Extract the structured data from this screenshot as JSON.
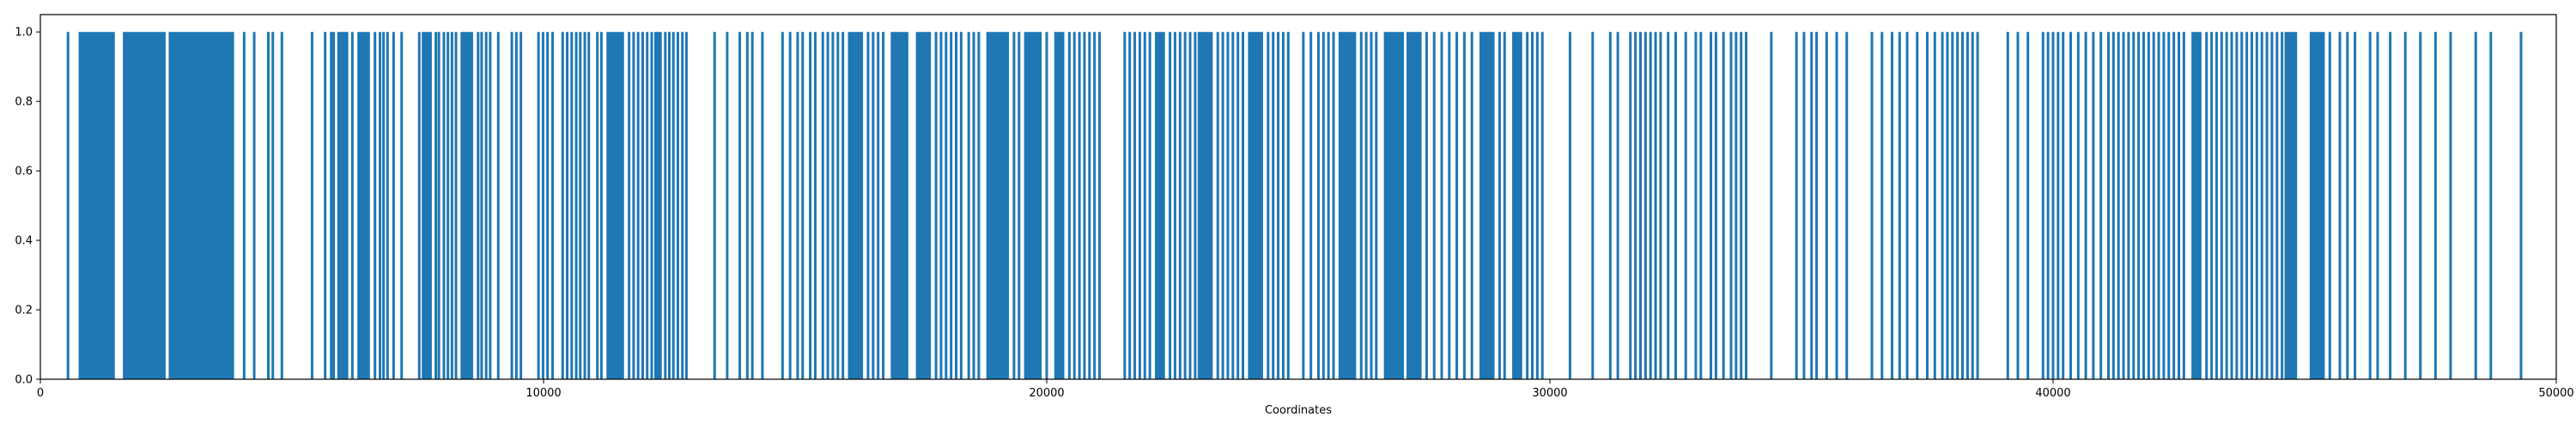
{
  "chart_data": {
    "type": "bar",
    "title": "",
    "xlabel": "Coordinates",
    "ylabel": "",
    "xlim": [
      0,
      50000
    ],
    "ylim": [
      0,
      1.05
    ],
    "grid": false,
    "bar_color": "#1f77b4",
    "bar_value": 1.0,
    "x_ticks": [
      {
        "value": 0,
        "label": "0"
      },
      {
        "value": 10000,
        "label": "10000"
      },
      {
        "value": 20000,
        "label": "20000"
      },
      {
        "value": 30000,
        "label": "30000"
      },
      {
        "value": 40000,
        "label": "40000"
      },
      {
        "value": 50000,
        "label": "50000"
      }
    ],
    "y_ticks": [
      {
        "value": 0.0,
        "label": "0.0"
      },
      {
        "value": 0.2,
        "label": "0.2"
      },
      {
        "value": 0.4,
        "label": "0.4"
      },
      {
        "value": 0.6,
        "label": "0.6"
      },
      {
        "value": 0.8,
        "label": "0.8"
      },
      {
        "value": 1.0,
        "label": "1.0"
      }
    ],
    "filled_ranges": [
      [
        760,
        1480
      ],
      [
        1640,
        2490
      ],
      [
        2550,
        3850
      ],
      [
        5900,
        6120
      ],
      [
        6300,
        6550
      ],
      [
        7580,
        7780
      ],
      [
        8350,
        8600
      ],
      [
        11250,
        11600
      ],
      [
        12200,
        12350
      ],
      [
        16050,
        16350
      ],
      [
        16900,
        17250
      ],
      [
        17400,
        17700
      ],
      [
        18800,
        19250
      ],
      [
        19550,
        19900
      ],
      [
        20150,
        20350
      ],
      [
        22150,
        22350
      ],
      [
        23000,
        23300
      ],
      [
        24000,
        24300
      ],
      [
        25800,
        26150
      ],
      [
        26700,
        27100
      ],
      [
        27150,
        27450
      ],
      [
        28600,
        28900
      ],
      [
        29250,
        29450
      ],
      [
        42750,
        42950
      ],
      [
        44600,
        44850
      ],
      [
        45100,
        45400
      ]
    ],
    "bar_positions": [
      550,
      4050,
      4250,
      4530,
      4620,
      4800,
      5400,
      5660,
      5780,
      5830,
      6200,
      6650,
      6750,
      6820,
      6900,
      7020,
      7180,
      7530,
      7860,
      7920,
      8020,
      8100,
      8180,
      8260,
      8700,
      8770,
      8860,
      8940,
      9100,
      9370,
      9460,
      9550,
      9900,
      9990,
      10080,
      10180,
      10380,
      10470,
      10560,
      10650,
      10730,
      10820,
      10900,
      11070,
      11150,
      11700,
      11790,
      11880,
      11970,
      12060,
      12150,
      12420,
      12500,
      12580,
      12670,
      12760,
      12840,
      13400,
      13650,
      13900,
      14050,
      14150,
      14350,
      14750,
      14900,
      15050,
      15150,
      15300,
      15400,
      15550,
      15650,
      15750,
      15850,
      15950,
      16450,
      16550,
      16650,
      16750,
      17800,
      17900,
      18000,
      18100,
      18200,
      18300,
      18450,
      18550,
      18650,
      19350,
      19450,
      20000,
      20450,
      20550,
      20650,
      20750,
      20850,
      20950,
      21050,
      21550,
      21650,
      21750,
      21850,
      21950,
      22050,
      22450,
      22550,
      22650,
      22750,
      22850,
      22950,
      23400,
      23500,
      23600,
      23700,
      23800,
      23900,
      24400,
      24500,
      24600,
      24700,
      24800,
      25100,
      25250,
      25400,
      25500,
      25600,
      25700,
      26250,
      26350,
      26450,
      26550,
      27550,
      27700,
      27850,
      28000,
      28150,
      28300,
      28450,
      29000,
      29100,
      29550,
      29650,
      29750,
      29850,
      30400,
      30850,
      31200,
      31350,
      31600,
      31700,
      31800,
      31900,
      32000,
      32100,
      32200,
      32350,
      32500,
      32700,
      32900,
      33000,
      33200,
      33300,
      33450,
      33600,
      33700,
      33800,
      33900,
      34400,
      34900,
      35050,
      35200,
      35300,
      35500,
      35700,
      35900,
      36400,
      36600,
      36800,
      36950,
      37100,
      37300,
      37500,
      37650,
      37800,
      37900,
      38000,
      38100,
      38200,
      38300,
      38400,
      38500,
      39100,
      39300,
      39500,
      39800,
      39900,
      40000,
      40100,
      40200,
      40350,
      40500,
      40650,
      40800,
      40950,
      41100,
      41200,
      41300,
      41400,
      41500,
      41600,
      41700,
      41800,
      41900,
      42000,
      42100,
      42200,
      42300,
      42400,
      42500,
      42600,
      43050,
      43150,
      43250,
      43350,
      43450,
      43550,
      43650,
      43750,
      43850,
      43950,
      44050,
      44150,
      44250,
      44350,
      44450,
      44550,
      45500,
      45700,
      45850,
      46000,
      46300,
      46450,
      46700,
      47000,
      47300,
      47600,
      47900,
      48400,
      48700,
      49300
    ]
  }
}
